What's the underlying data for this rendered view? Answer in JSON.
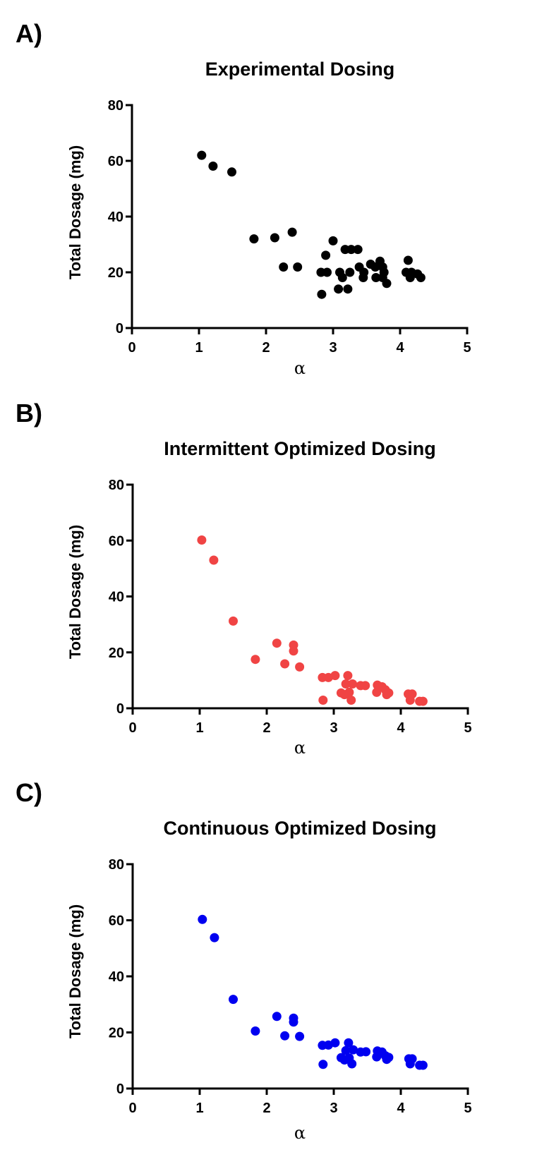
{
  "figure": {
    "panels": [
      {
        "letter": "A)"
      },
      {
        "letter": "B)"
      },
      {
        "letter": "C)"
      }
    ]
  },
  "chart_data": [
    {
      "type": "scatter",
      "panel": "A)",
      "title": "Experimental Dosing",
      "xlabel": "α",
      "ylabel": "Total Dosage (mg)",
      "xlim": [
        0,
        5
      ],
      "ylim": [
        0,
        80
      ],
      "xticks": [
        0,
        1,
        2,
        3,
        4,
        5
      ],
      "yticks": [
        0,
        20,
        40,
        60,
        80
      ],
      "xtick_labels": [
        "0",
        "1",
        "2",
        "3",
        "4",
        "5"
      ],
      "ytick_labels": [
        "0",
        "20",
        "40",
        "60",
        "80"
      ],
      "grid": false,
      "color": "#000000",
      "x": [
        1.04,
        1.21,
        1.49,
        1.82,
        2.13,
        2.39,
        2.26,
        2.47,
        2.82,
        2.91,
        2.89,
        2.83,
        3.0,
        3.1,
        3.14,
        3.08,
        3.22,
        3.25,
        3.18,
        3.27,
        3.37,
        3.39,
        3.46,
        3.45,
        3.56,
        3.63,
        3.7,
        3.74,
        3.76,
        3.64,
        3.74,
        3.8,
        4.12,
        4.09,
        4.17,
        4.15,
        4.26,
        4.31
      ],
      "y": [
        62.0,
        58.1,
        56.0,
        32.0,
        32.4,
        34.4,
        21.9,
        21.9,
        20.0,
        20.0,
        26.1,
        12.1,
        31.3,
        20.0,
        18.1,
        14.0,
        14.0,
        20.0,
        28.2,
        28.2,
        28.2,
        21.9,
        20.0,
        18.1,
        22.9,
        21.9,
        24.0,
        21.9,
        20.0,
        18.1,
        18.1,
        16.0,
        24.3,
        20.0,
        20.0,
        18.1,
        19.4,
        18.1
      ]
    },
    {
      "type": "scatter",
      "panel": "B)",
      "title": "Intermittent Optimized Dosing",
      "xlabel": "α",
      "ylabel": "Total Dosage (mg)",
      "xlim": [
        0,
        5
      ],
      "ylim": [
        0,
        80
      ],
      "xticks": [
        0,
        1,
        2,
        3,
        4,
        5
      ],
      "yticks": [
        0,
        20,
        40,
        60,
        80
      ],
      "xtick_labels": [
        "0",
        "1",
        "2",
        "3",
        "4",
        "5"
      ],
      "ytick_labels": [
        "0",
        "20",
        "40",
        "60",
        "80"
      ],
      "grid": false,
      "color": "#F04444",
      "x": [
        1.03,
        1.21,
        1.5,
        1.83,
        2.15,
        2.4,
        2.4,
        2.27,
        2.49,
        2.83,
        2.92,
        3.02,
        2.84,
        3.21,
        3.18,
        3.28,
        3.11,
        3.16,
        3.23,
        3.26,
        3.4,
        3.47,
        3.65,
        3.72,
        3.77,
        3.64,
        3.79,
        3.82,
        4.11,
        4.17,
        4.14,
        4.28,
        4.33
      ],
      "y": [
        60.2,
        53.0,
        31.2,
        17.5,
        23.3,
        22.6,
        20.5,
        15.9,
        14.8,
        11.0,
        11.0,
        11.7,
        2.9,
        11.7,
        8.7,
        8.7,
        5.5,
        4.9,
        5.7,
        2.9,
        8.1,
        8.1,
        8.3,
        7.7,
        6.6,
        5.7,
        4.9,
        5.5,
        5.1,
        5.1,
        2.9,
        2.5,
        2.5
      ]
    },
    {
      "type": "scatter",
      "panel": "C)",
      "title": "Continuous Optimized Dosing",
      "xlabel": "α",
      "ylabel": "Total Dosage (mg)",
      "xlim": [
        0,
        5
      ],
      "ylim": [
        0,
        80
      ],
      "xticks": [
        0,
        1,
        2,
        3,
        4,
        5
      ],
      "yticks": [
        0,
        20,
        40,
        60,
        80
      ],
      "xtick_labels": [
        "0",
        "1",
        "2",
        "3",
        "4",
        "5"
      ],
      "ytick_labels": [
        "0",
        "20",
        "40",
        "60",
        "80"
      ],
      "grid": false,
      "color": "#0000F0",
      "x": [
        1.04,
        1.22,
        1.5,
        1.83,
        2.15,
        2.4,
        2.4,
        2.27,
        2.49,
        2.83,
        2.92,
        3.02,
        2.84,
        3.22,
        3.18,
        3.29,
        3.11,
        3.16,
        3.23,
        3.27,
        3.4,
        3.48,
        3.65,
        3.72,
        3.77,
        3.64,
        3.79,
        3.82,
        4.12,
        4.17,
        4.14,
        4.28,
        4.33
      ],
      "y": [
        60.3,
        53.8,
        31.8,
        20.5,
        25.7,
        25.1,
        23.7,
        18.8,
        18.6,
        15.4,
        15.5,
        16.3,
        8.6,
        16.3,
        13.5,
        13.8,
        11.0,
        10.2,
        10.9,
        8.8,
        13.0,
        13.1,
        13.4,
        13.0,
        11.7,
        11.3,
        10.4,
        11.1,
        10.6,
        10.6,
        8.8,
        8.3,
        8.3
      ]
    }
  ]
}
